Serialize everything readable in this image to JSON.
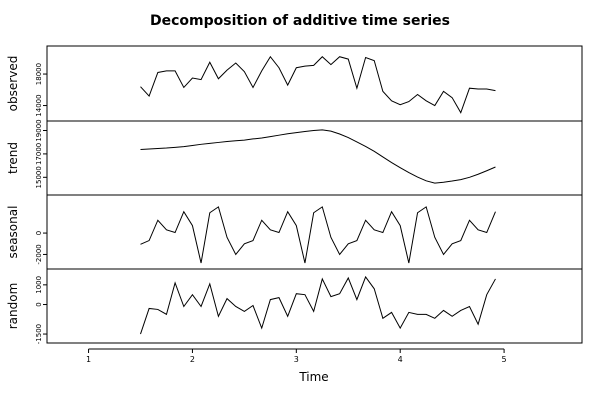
{
  "chart_data": {
    "type": "line",
    "title": "Decomposition of additive time series",
    "xlabel": "Time",
    "xlim": [
      0.6,
      5.75
    ],
    "x_ticks": [
      "1",
      "2",
      "3",
      "4",
      "5"
    ],
    "x": [
      1.5,
      1.583,
      1.667,
      1.75,
      1.833,
      1.917,
      2.0,
      2.083,
      2.167,
      2.25,
      2.333,
      2.417,
      2.5,
      2.583,
      2.667,
      2.75,
      2.833,
      2.917,
      3.0,
      3.083,
      3.167,
      3.25,
      3.333,
      3.417,
      3.5,
      3.583,
      3.667,
      3.75,
      3.833,
      3.917,
      4.0,
      4.083,
      4.167,
      4.25,
      4.333,
      4.417,
      4.5,
      4.583,
      4.667,
      4.75,
      4.833,
      4.917
    ],
    "panels": [
      {
        "name": "observed",
        "ylim": [
          12800,
          20800
        ],
        "y_ticks": [
          "14000",
          "18000"
        ],
        "values": [
          16400,
          15200,
          18200,
          18400,
          18400,
          16300,
          17500,
          17300,
          19500,
          17400,
          18500,
          19400,
          18300,
          16300,
          18400,
          20200,
          18800,
          16600,
          18800,
          19000,
          19100,
          20200,
          19200,
          20200,
          19900,
          16200,
          20100,
          19700,
          15800,
          14600,
          14100,
          14500,
          15400,
          14600,
          14000,
          15800,
          15000,
          13100,
          16200,
          16100,
          16100,
          15900
        ]
      },
      {
        "name": "trend",
        "ylim": [
          14000,
          19300
        ],
        "y_ticks": [
          "15000",
          "17000",
          "19000"
        ],
        "values": [
          17380,
          17420,
          17460,
          17500,
          17560,
          17620,
          17720,
          17820,
          17900,
          17980,
          18060,
          18120,
          18180,
          18280,
          18360,
          18480,
          18600,
          18720,
          18820,
          18920,
          19000,
          19050,
          18950,
          18700,
          18400,
          18020,
          17640,
          17220,
          16740,
          16260,
          15820,
          15400,
          15020,
          14700,
          14500,
          14580,
          14680,
          14800,
          15000,
          15260,
          15560,
          15880
        ]
      },
      {
        "name": "seasonal",
        "ylim": [
          -2800,
          3000
        ],
        "y_ticks": [
          "-2000",
          "0"
        ],
        "values": [
          -1050,
          -700,
          1200,
          300,
          50,
          2000,
          700,
          -2800,
          1900,
          2450,
          -400,
          -2000,
          -1000,
          -700,
          1200,
          300,
          50,
          2000,
          700,
          -2800,
          1900,
          2450,
          -400,
          -2000,
          -1000,
          -700,
          1200,
          300,
          50,
          2000,
          700,
          -2800,
          1900,
          2450,
          -400,
          -2000,
          -1000,
          -700,
          1200,
          300,
          50,
          2000
        ]
      },
      {
        "name": "random",
        "ylim": [
          -1650,
          1500
        ],
        "y_ticks": [
          "-1500",
          "0",
          "1000"
        ],
        "values": [
          -1500,
          -200,
          -250,
          -500,
          1100,
          -100,
          500,
          -100,
          1050,
          -600,
          300,
          -100,
          -350,
          -50,
          -1200,
          250,
          350,
          -600,
          550,
          500,
          -350,
          1300,
          400,
          550,
          1350,
          250,
          1400,
          800,
          -700,
          -400,
          -1200,
          -400,
          -500,
          -500,
          -700,
          -300,
          -600,
          -300,
          -100,
          -1000,
          500,
          1300
        ]
      }
    ]
  }
}
